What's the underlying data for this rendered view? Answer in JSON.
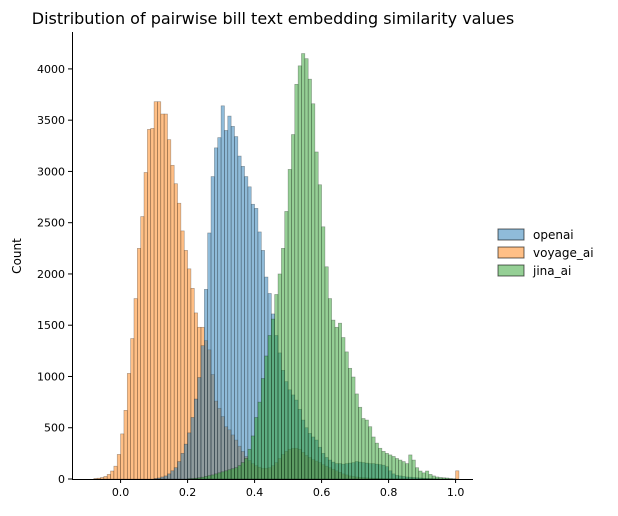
{
  "chart_data": {
    "type": "histogram",
    "title": "Distribution of pairwise bill text embedding similarity values",
    "xlabel": "",
    "ylabel": "Count",
    "xlim": [
      -0.145,
      1.052
    ],
    "ylim": [
      0,
      4360
    ],
    "x_ticks": [
      "0.0",
      "0.2",
      "0.4",
      "0.6",
      "0.8",
      "1.0"
    ],
    "y_ticks": [
      "0",
      "500",
      "1000",
      "1500",
      "2000",
      "2500",
      "3000",
      "3500",
      "4000"
    ],
    "grid": false,
    "legend_placement": "right",
    "bin_start": -0.08,
    "bin_width": 0.01,
    "series": [
      {
        "name": "voyage_ai",
        "color": "#ff7f0e",
        "values": [
          5,
          8,
          15,
          25,
          45,
          78,
          125,
          240,
          440,
          670,
          1030,
          1370,
          1760,
          2250,
          2560,
          2990,
          3410,
          3420,
          3680,
          3680,
          3560,
          3560,
          3310,
          3060,
          2880,
          2690,
          2420,
          2230,
          2050,
          1860,
          1620,
          1480,
          1480,
          1350,
          1260,
          1020,
          760,
          690,
          610,
          510,
          480,
          430,
          380,
          320,
          270,
          220,
          180,
          150,
          130,
          115,
          105,
          105,
          110,
          130,
          160,
          200,
          240,
          270,
          290,
          300,
          300,
          290,
          260,
          230,
          210,
          190,
          175,
          160,
          140,
          125,
          110,
          95,
          80,
          65,
          50,
          40,
          30,
          25,
          20,
          16,
          13,
          11,
          9,
          8,
          7,
          6,
          5,
          4,
          4,
          3,
          3,
          2,
          2,
          2,
          1,
          1,
          1,
          1,
          1,
          1,
          1,
          0,
          0,
          0,
          0,
          0,
          0,
          0,
          80
        ]
      },
      {
        "name": "openai",
        "color": "#1f77b4",
        "values": [
          0,
          0,
          0,
          0,
          0,
          0,
          0,
          0,
          0,
          0,
          0,
          0,
          0,
          0,
          0,
          0,
          0,
          0,
          5,
          10,
          20,
          30,
          50,
          80,
          110,
          170,
          250,
          340,
          450,
          600,
          780,
          990,
          1300,
          1850,
          2400,
          2950,
          3230,
          3330,
          3640,
          3400,
          3540,
          3440,
          3340,
          3150,
          3050,
          2950,
          2850,
          2680,
          2640,
          2410,
          2230,
          1970,
          1810,
          1610,
          1400,
          1230,
          1060,
          950,
          870,
          820,
          770,
          680,
          575,
          500,
          445,
          410,
          380,
          310,
          250,
          210,
          185,
          165,
          150,
          150,
          145,
          150,
          155,
          160,
          170,
          165,
          160,
          155,
          150,
          150,
          145,
          140,
          135,
          120,
          80,
          50,
          35,
          30,
          25,
          20,
          18,
          15,
          12,
          10,
          8,
          6,
          5,
          4,
          3,
          2,
          2,
          1,
          1,
          1,
          0
        ]
      },
      {
        "name": "jina_ai",
        "color": "#2ca02c",
        "values": [
          0,
          0,
          0,
          0,
          0,
          0,
          0,
          0,
          0,
          0,
          0,
          0,
          0,
          0,
          0,
          0,
          0,
          0,
          0,
          0,
          0,
          0,
          0,
          0,
          0,
          0,
          0,
          0,
          3,
          5,
          8,
          12,
          18,
          25,
          32,
          40,
          50,
          60,
          70,
          80,
          90,
          100,
          110,
          130,
          160,
          200,
          290,
          420,
          600,
          750,
          980,
          1200,
          1400,
          1560,
          1800,
          2000,
          2250,
          2610,
          3020,
          3360,
          3850,
          4030,
          4150,
          4100,
          3900,
          3660,
          3190,
          2870,
          2460,
          2070,
          1760,
          1550,
          1480,
          1520,
          1380,
          1240,
          1080,
          995,
          830,
          700,
          590,
          575,
          510,
          410,
          350,
          300,
          270,
          250,
          235,
          220,
          200,
          185,
          170,
          150,
          235,
          185,
          110,
          78,
          60,
          78,
          45,
          30,
          20,
          15,
          12,
          10,
          5,
          2,
          0
        ]
      }
    ]
  }
}
